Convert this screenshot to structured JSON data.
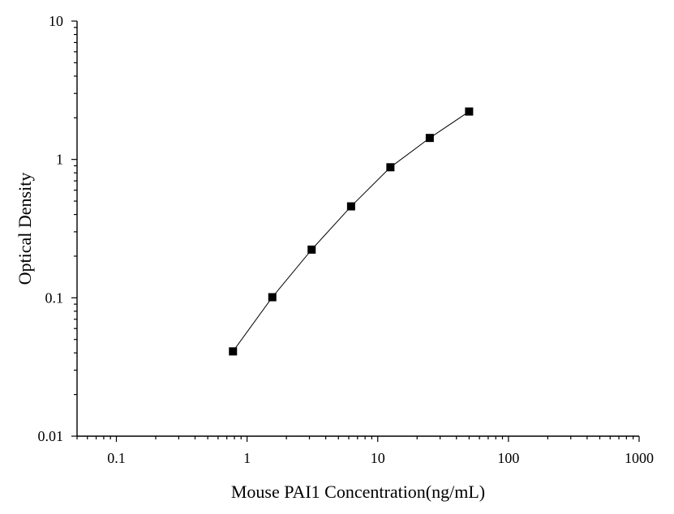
{
  "chart_data": {
    "type": "line",
    "title": "",
    "xlabel": "Mouse PAI1 Concentration(ng/mL)",
    "ylabel": "Optical Density",
    "xscale": "log",
    "yscale": "log",
    "xlim": [
      0.05,
      1000
    ],
    "ylim": [
      0.01,
      10
    ],
    "grid": false,
    "legend": "none",
    "x_ticks": [
      {
        "value": 0.1,
        "label": "0.1"
      },
      {
        "value": 1,
        "label": "1"
      },
      {
        "value": 10,
        "label": "10"
      },
      {
        "value": 100,
        "label": "100"
      },
      {
        "value": 1000,
        "label": "1000"
      }
    ],
    "y_ticks": [
      {
        "value": 0.01,
        "label": "0.01"
      },
      {
        "value": 0.1,
        "label": "0.1"
      },
      {
        "value": 1,
        "label": "1"
      },
      {
        "value": 10,
        "label": "10"
      }
    ],
    "series": [
      {
        "marker": "square",
        "color": "#000000",
        "x": [
          0.78,
          1.56,
          3.12,
          6.25,
          12.5,
          25,
          50
        ],
        "y": [
          0.041,
          0.101,
          0.223,
          0.458,
          0.878,
          1.43,
          2.22
        ]
      }
    ]
  }
}
